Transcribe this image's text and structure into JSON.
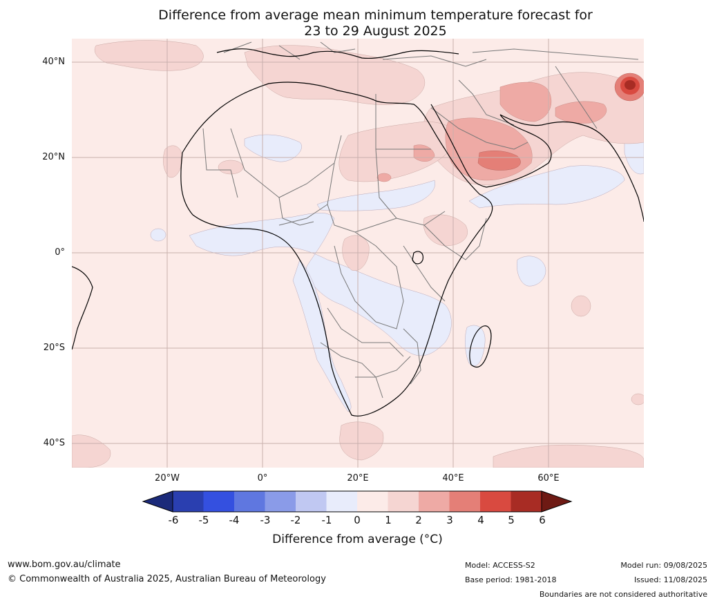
{
  "title": {
    "line1": "Difference from average mean minimum temperature forecast for",
    "line2": "23 to 29 August 2025"
  },
  "map": {
    "lat_labels": [
      "40°N",
      "20°N",
      "0°",
      "20°S",
      "40°S"
    ],
    "lon_labels": [
      "20°W",
      "0°",
      "20°E",
      "40°E",
      "60°E"
    ],
    "lon_range": [
      -40,
      80
    ],
    "lat_range": [
      -45,
      45
    ],
    "colors": {
      "ocean_base": "#fcebe8",
      "cool_1": "#e8ecfb",
      "warm_2": "#f5d5d2",
      "warm_3": "#eeaaa5",
      "warm_4": "#e47f77",
      "warm_5": "#d94a40",
      "warm_6": "#a82c24",
      "coast": "#000000",
      "border": "#777777",
      "grid": "#c9b0ad"
    }
  },
  "colorbar": {
    "ticks": [
      "-6",
      "-5",
      "-4",
      "-3",
      "-2",
      "-1",
      "0",
      "1",
      "2",
      "3",
      "4",
      "5",
      "6"
    ],
    "colors": [
      "#1b2a7a",
      "#2a3fb0",
      "#3450e0",
      "#5f77e0",
      "#8a9be8",
      "#c0c8f2",
      "#e8ecfb",
      "#fcebe8",
      "#f5d5d2",
      "#eeaaa5",
      "#e47f77",
      "#d94a40",
      "#a82c24",
      "#6e1a14"
    ],
    "label": "Difference from average (°C)"
  },
  "footer": {
    "website": "www.bom.gov.au/climate",
    "copyright": "© Commonwealth of Australia 2025, Australian Bureau of Meteorology",
    "model": "Model: ACCESS-S2",
    "base_period": "Base period: 1981-2018",
    "model_run": "Model run: 09/08/2025",
    "issued": "Issued: 11/08/2025",
    "disclaimer": "Boundaries are not considered authoritative"
  }
}
